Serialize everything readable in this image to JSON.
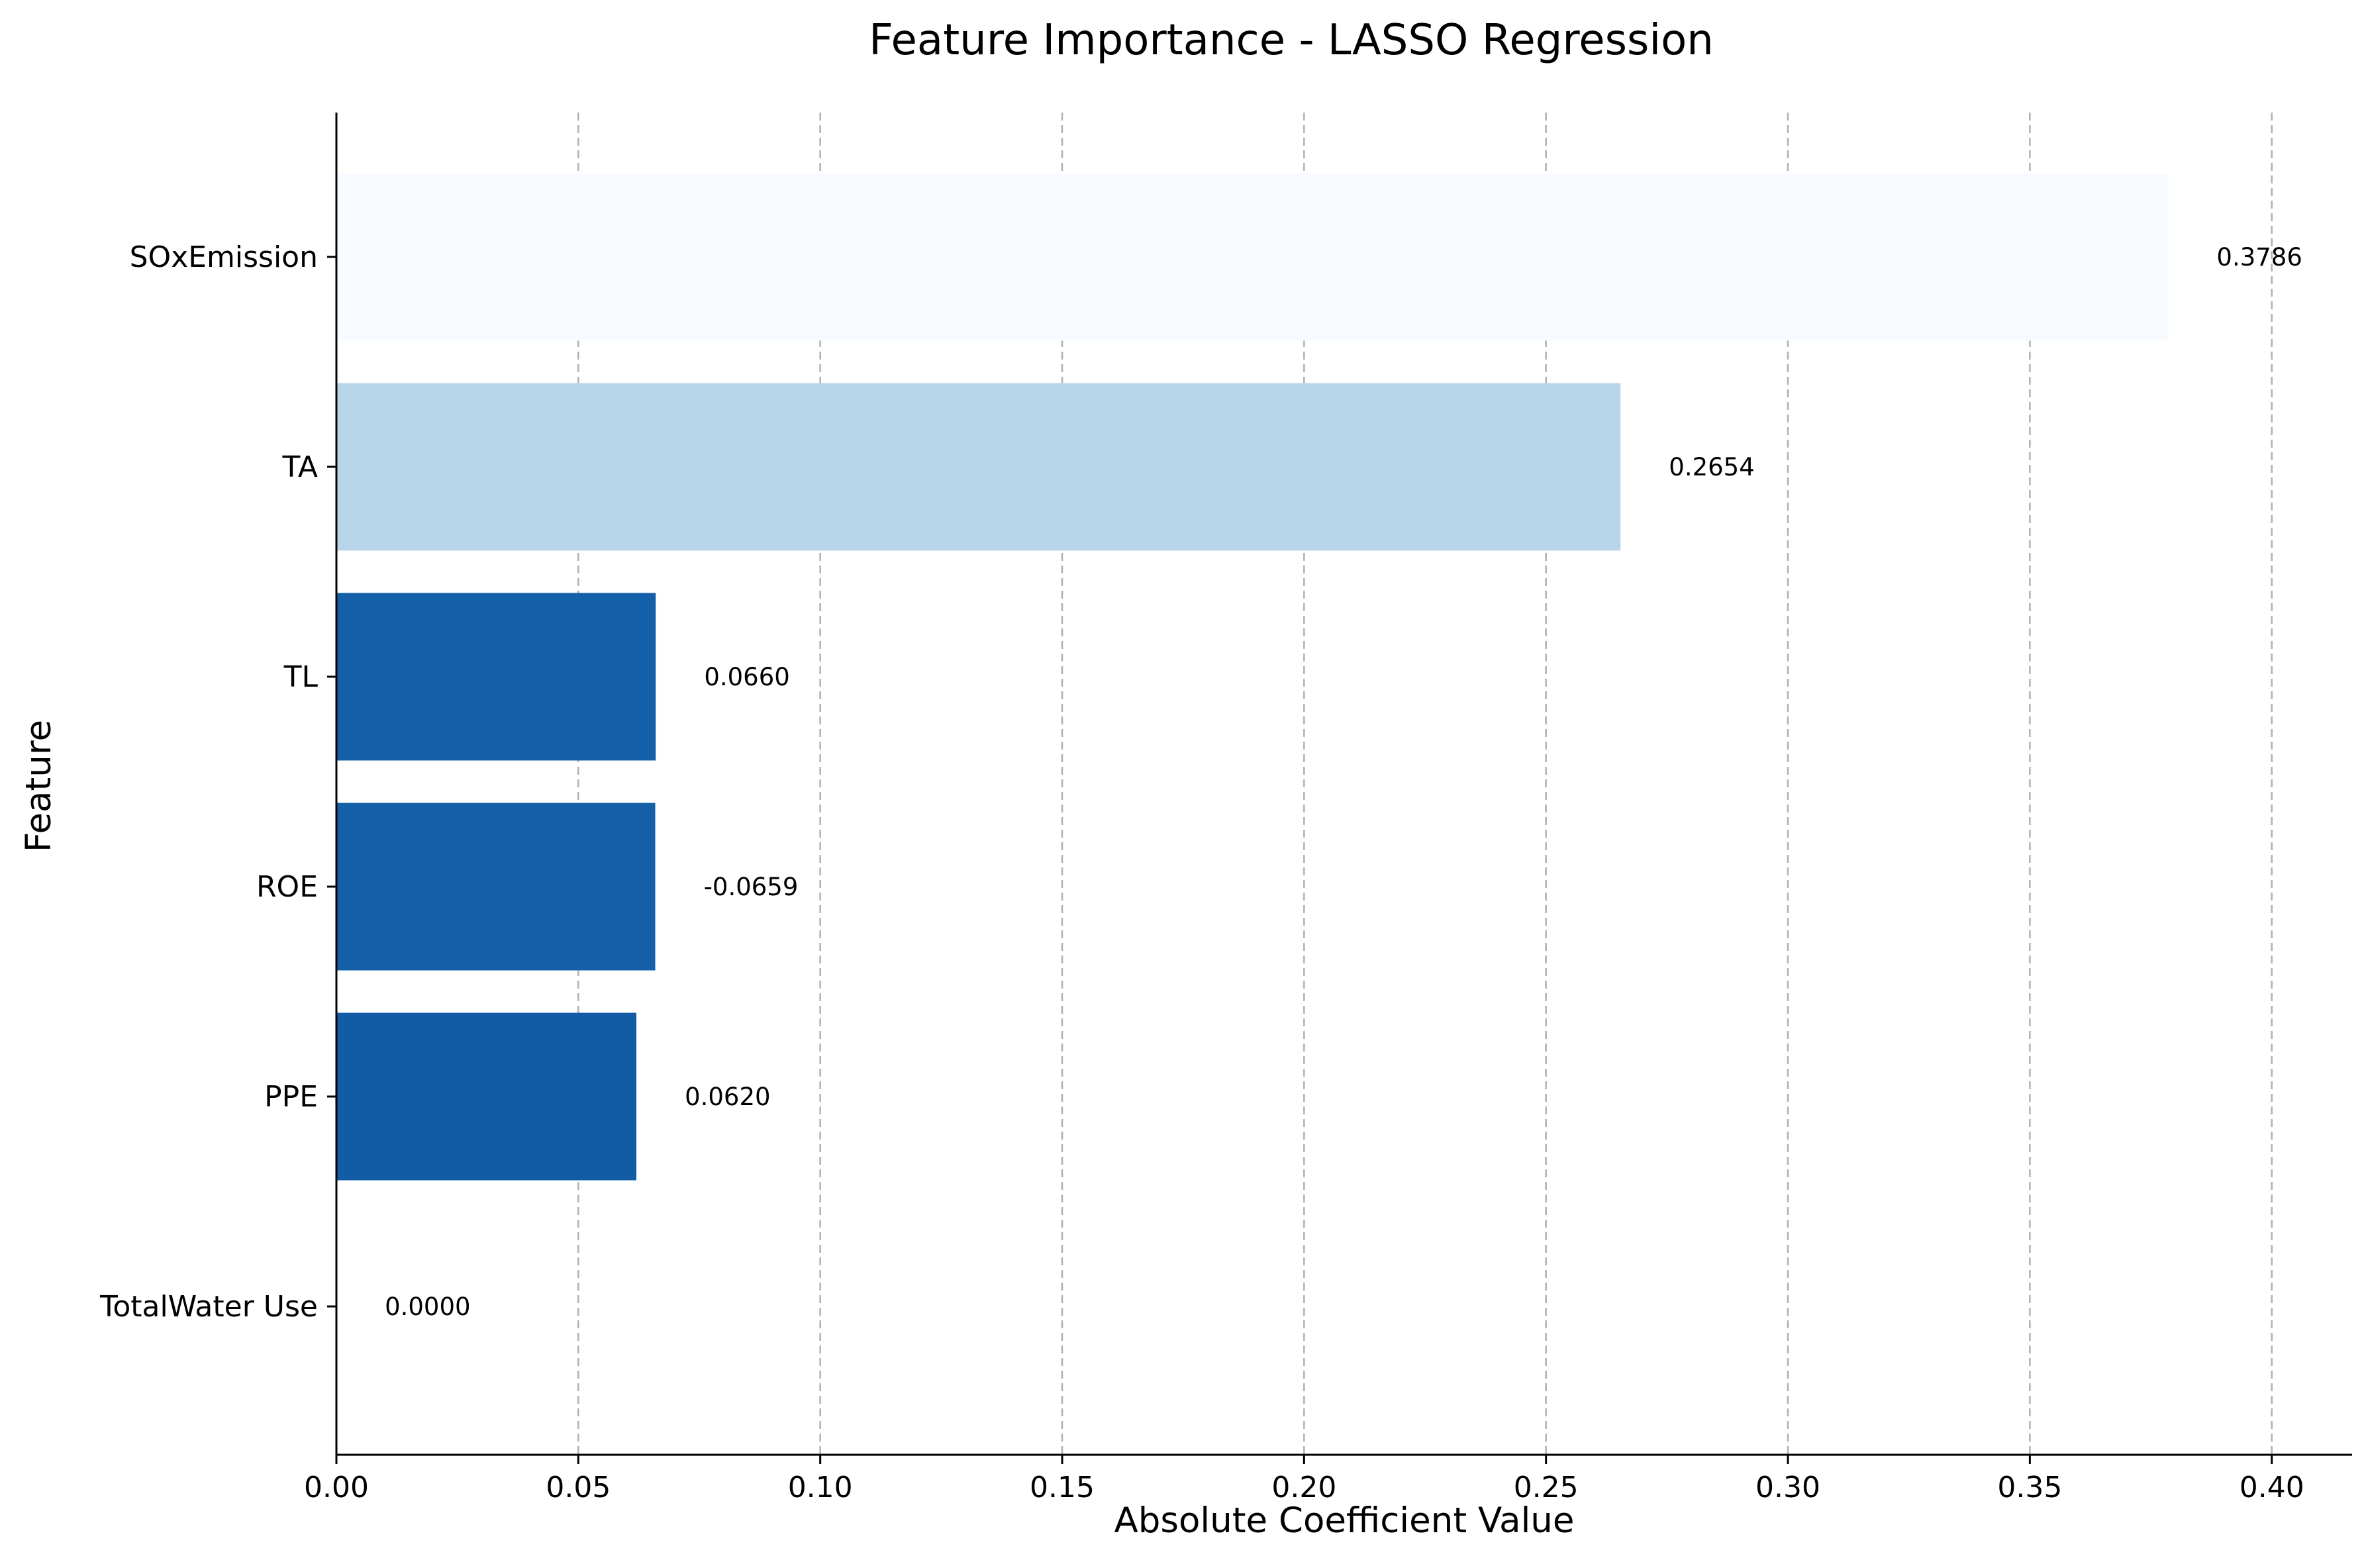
{
  "chart_data": {
    "type": "bar",
    "orientation": "horizontal",
    "title": "Feature Importance - LASSO Regression",
    "xlabel": "Absolute Coefficient Value",
    "ylabel": "Feature",
    "xlim": [
      0,
      0.4166
    ],
    "grid": "x, dashed",
    "x_ticks": [
      "0.00",
      "0.05",
      "0.10",
      "0.15",
      "0.20",
      "0.25",
      "0.30",
      "0.35",
      "0.40"
    ],
    "x_tick_values": [
      0,
      0.05,
      0.1,
      0.15,
      0.2,
      0.25,
      0.3,
      0.35,
      0.4
    ],
    "categories": [
      "SOxEmission",
      "TA",
      "TL",
      "ROE",
      "PPE",
      "TotalWater Use"
    ],
    "values": [
      0.3786,
      0.2654,
      0.066,
      0.0659,
      0.062,
      0.0
    ],
    "value_labels": [
      "0.3786",
      "0.2654",
      "0.0660",
      "-0.0659",
      "0.0620",
      "0.0000"
    ],
    "colors": [
      "#f7fbff",
      "#b9d5ea",
      "#135fa8",
      "#135fa8",
      "#115ca5",
      "#08306b"
    ]
  }
}
